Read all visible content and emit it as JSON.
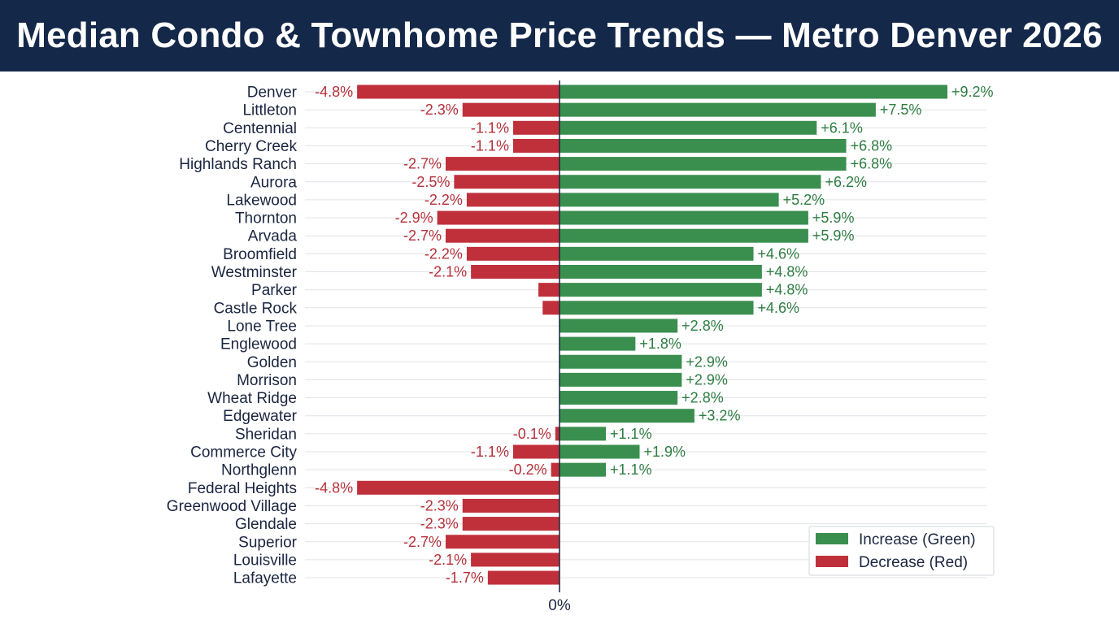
{
  "title": "Median Condo & Townhome Price Trends — Metro Denver 2026",
  "chart_data": {
    "type": "bar",
    "orientation": "horizontal",
    "categories": [
      "Denver",
      "Littleton",
      "Centennial",
      "Cherry Creek",
      "Highlands Ranch",
      "Aurora",
      "Lakewood",
      "Thornton",
      "Arvada",
      "Broomfield",
      "Westminster",
      "Parker",
      "Castle Rock",
      "Lone Tree",
      "Englewood",
      "Golden",
      "Morrison",
      "Wheat Ridge",
      "Edgewater",
      "Sheridan",
      "Commerce City",
      "Northglenn",
      "Federal Heights",
      "Greenwood Village",
      "Glendale",
      "Superior",
      "Louisville",
      "Lafayette"
    ],
    "series": [
      {
        "name": "Increase (Green)",
        "color": "#3a8f4f",
        "values": [
          9.2,
          7.5,
          6.1,
          6.8,
          6.8,
          6.2,
          5.2,
          5.9,
          5.9,
          4.6,
          4.8,
          4.8,
          4.6,
          2.8,
          1.8,
          2.9,
          2.9,
          2.8,
          3.2,
          1.1,
          1.9,
          1.1,
          null,
          null,
          null,
          null,
          null,
          null
        ],
        "labels": [
          "+9.2%",
          "+7.5%",
          "+6.1%",
          "+6.8%",
          "+6.8%",
          "+6.2%",
          "+5.2%",
          "+5.9%",
          "+5.9%",
          "+4.6%",
          "+4.8%",
          "+4.8%",
          "+4.6%",
          "+2.8%",
          "+1.8%",
          "+2.9%",
          "+2.9%",
          "+2.8%",
          "+3.2%",
          "+1.1%",
          "+1.9%",
          "+1.1%",
          "",
          "",
          "",
          "",
          "",
          ""
        ]
      },
      {
        "name": "Decrease (Red)",
        "color": "#c0303b",
        "values": [
          -4.8,
          -2.3,
          -1.1,
          -1.1,
          -2.7,
          -2.5,
          -2.2,
          -2.9,
          -2.7,
          -2.2,
          -2.1,
          -0.5,
          -0.4,
          null,
          null,
          null,
          null,
          null,
          null,
          -0.1,
          -1.1,
          -0.2,
          -4.8,
          -2.3,
          -2.3,
          -2.7,
          -2.1,
          -1.7
        ],
        "labels": [
          "-4.8%",
          "-2.3%",
          "-1.1%",
          "-1.1%",
          "-2.7%",
          "-2.5%",
          "-2.2%",
          "-2.9%",
          "-2.7%",
          "-2.2%",
          "-2.1%",
          "",
          "",
          "",
          "",
          "",
          "",
          "",
          "",
          "-0.1%",
          "-1.1%",
          "-0.2%",
          "-4.8%",
          "-2.3%",
          "-2.3%",
          "-2.7%",
          "-2.1%",
          "-1.7%"
        ]
      }
    ],
    "xlim": [
      -5.2,
      10.2
    ],
    "zero_tick_label": "0%",
    "grid": true,
    "legend_position": "bottom-right"
  }
}
